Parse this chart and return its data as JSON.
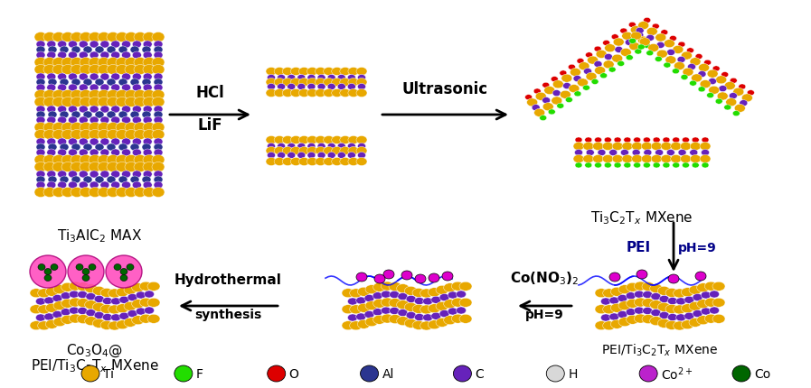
{
  "background_color": "#ffffff",
  "fig_width": 8.97,
  "fig_height": 4.31,
  "dpi": 100,
  "arrow1_label1": "HCl",
  "arrow1_label2": "LiF",
  "arrow2_label": "Ultrasonic",
  "arrow3_label1": "PEI",
  "arrow3_label2": "pH=9",
  "arrow4_label1": "Co(NO$_3$)$_2$",
  "arrow4_label2": "pH=9",
  "arrow5_label1": "Hydrothermal",
  "arrow5_label2": "synthesis",
  "label_MAX": "Ti$_3$AlC$_2$ MAX",
  "label_MXene": "Ti$_3$C$_2$T$_x$ MXene",
  "label_PEI_MXene": "PEI/Ti$_3$C$_2$T$_x$ MXene",
  "label_Co3O4_line1": "Co$_3$O$_4$@",
  "label_Co3O4_line2": "PEI/Ti$_3$C$_2$T$_x$ MXene",
  "legend_items": [
    {
      "label": "Ti",
      "color": "#E8A800"
    },
    {
      "label": "F",
      "color": "#22DD00"
    },
    {
      "label": "O",
      "color": "#DD0000"
    },
    {
      "label": "Al",
      "color": "#2B3590"
    },
    {
      "label": "C",
      "color": "#6622BB"
    },
    {
      "label": "H",
      "color": "#D8D8D8"
    },
    {
      "label": "Co$^{2+}$",
      "color": "#BB22CC"
    },
    {
      "label": "Co",
      "color": "#006600"
    }
  ],
  "ti_yellow": "#E8A800",
  "c_purple": "#6622BB",
  "al_blue": "#2B3590",
  "f_green": "#22DD00",
  "o_red": "#DD0000",
  "co2_magenta": "#DD00CC",
  "co_green": "#006600",
  "h_gray": "#D0D0D0"
}
